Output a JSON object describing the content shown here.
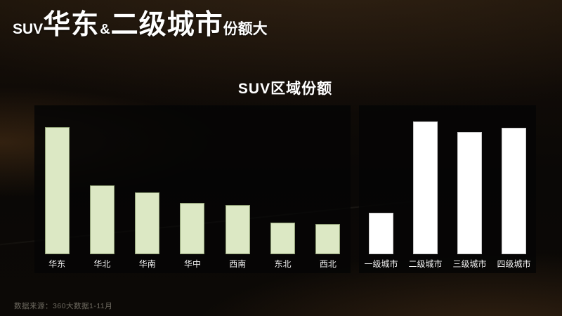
{
  "slide": {
    "title": {
      "prefix": "SUV",
      "emphasis1": "华东",
      "ampersand": "&",
      "emphasis2": "二级城市",
      "suffix": "份额大"
    },
    "source_note": "数据来源：360大数据1-11月"
  },
  "chart_data": {
    "type": "bar",
    "title": "SUV区域份额",
    "ylabel": "",
    "xlabel": "",
    "ylim": [
      0,
      35
    ],
    "axes_shown": false,
    "grid": false,
    "legend": false,
    "value_labels_shown": false,
    "groups": [
      {
        "name": "region-share",
        "bar_color": "#dce8c4",
        "bar_border": "#8fa075",
        "categories": [
          "华东",
          "华北",
          "华南",
          "华中",
          "西南",
          "东北",
          "西北"
        ],
        "values": [
          30.2,
          16.3,
          14.7,
          12.2,
          11.7,
          7.5,
          7.2
        ]
      },
      {
        "name": "city-tier-share",
        "bar_color": "#ffffff",
        "bar_border": "#c9c9c9",
        "categories": [
          "一级城市",
          "二级城市",
          "三级城市",
          "四级城市"
        ],
        "values": [
          9.8,
          31.5,
          29.0,
          30.0
        ]
      }
    ]
  },
  "colors": {
    "title_text": "#ffffff",
    "chart_title_text": "#ffffff",
    "category_label_text": "#f2f2f2",
    "source_note_text": "#6e6a60",
    "left_group_bar": "#dce8c4",
    "right_group_bar": "#ffffff",
    "panel_overlay": "rgba(5,5,5,0.82)"
  }
}
